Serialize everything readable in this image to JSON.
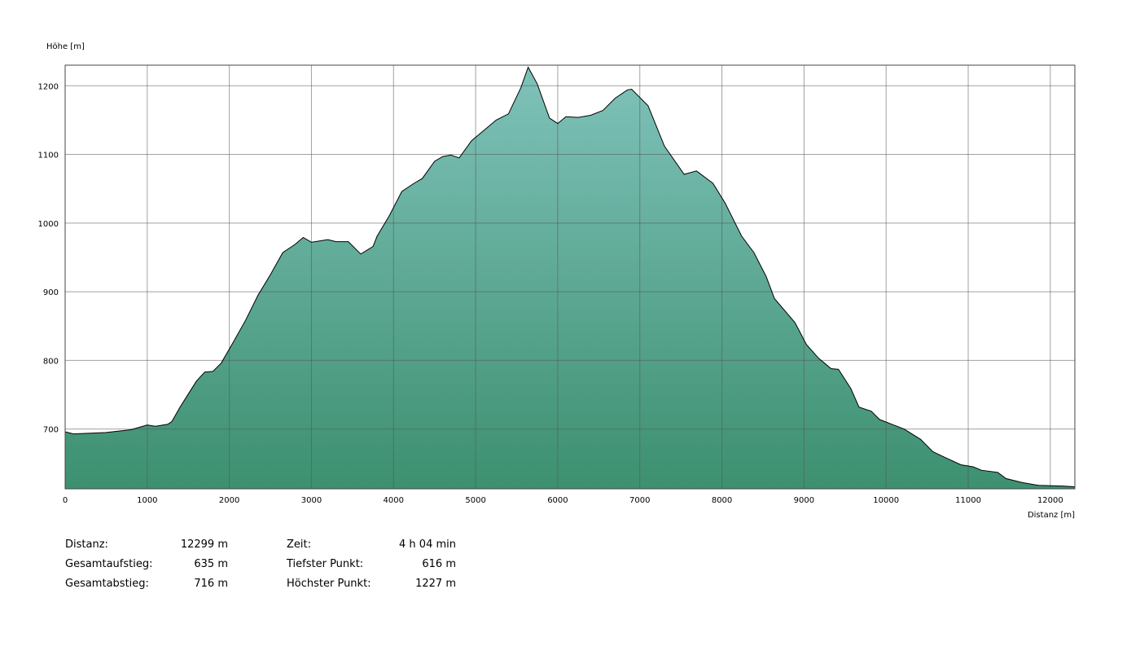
{
  "chart_data": {
    "type": "area",
    "y_label": "Höhe [m]",
    "x_label": "Distanz [m]",
    "x": [
      0,
      100,
      500,
      800,
      1000,
      1100,
      1250,
      1300,
      1400,
      1500,
      1600,
      1700,
      1800,
      1900,
      2050,
      2200,
      2350,
      2500,
      2650,
      2800,
      2900,
      3000,
      3100,
      3200,
      3300,
      3450,
      3600,
      3750,
      3800,
      3950,
      4100,
      4250,
      4350,
      4500,
      4600,
      4700,
      4800,
      4950,
      5100,
      5250,
      5400,
      5550,
      5640,
      5750,
      5900,
      6000,
      6100,
      6250,
      6400,
      6550,
      6700,
      6850,
      6900,
      7100,
      7300,
      7540,
      7690,
      7890,
      8040,
      8240,
      8390,
      8540,
      8640,
      8890,
      9030,
      9180,
      9330,
      9420,
      9570,
      9670,
      9820,
      9920,
      10070,
      10220,
      10420,
      10570,
      10710,
      10910,
      11060,
      11160,
      11360,
      11460,
      11660,
      11860,
      12150,
      12299
    ],
    "values": [
      696,
      693,
      695,
      699,
      706,
      704,
      707,
      711,
      732,
      751,
      770,
      783,
      784,
      796,
      827,
      859,
      895,
      925,
      957,
      969,
      979,
      972,
      974,
      976,
      973,
      973,
      955,
      966,
      981,
      1011,
      1046,
      1058,
      1065,
      1090,
      1097,
      1099,
      1095,
      1120,
      1135,
      1150,
      1159,
      1197,
      1227,
      1203,
      1153,
      1145,
      1155,
      1154,
      1157,
      1164,
      1182,
      1194,
      1195,
      1171,
      1112,
      1071,
      1076,
      1058,
      1029,
      981,
      957,
      922,
      890,
      855,
      823,
      803,
      788,
      787,
      759,
      732,
      726,
      714,
      707,
      700,
      685,
      667,
      659,
      648,
      645,
      640,
      637,
      628,
      622,
      618,
      617,
      616
    ],
    "xlim": [
      0,
      12299
    ],
    "ylim": [
      613,
      1230
    ],
    "xticks": [
      0,
      1000,
      2000,
      3000,
      4000,
      5000,
      6000,
      7000,
      8000,
      9000,
      10000,
      11000,
      12000
    ],
    "yticks": [
      700,
      800,
      900,
      1000,
      1100,
      1200
    ],
    "grid": true,
    "fill_top": "#7fc2ba",
    "fill_bottom": "#3d9070",
    "line_color": "#000000"
  },
  "stats": [
    [
      {
        "label": "Distanz:",
        "value": "12299 m"
      },
      {
        "label": "Zeit:",
        "value": "4 h 04 min"
      }
    ],
    [
      {
        "label": "Gesamtaufstieg:",
        "value": "635 m"
      },
      {
        "label": "Tiefster Punkt:",
        "value": "616 m"
      }
    ],
    [
      {
        "label": "Gesamtabstieg:",
        "value": "716 m"
      },
      {
        "label": "Höchster Punkt:",
        "value": "1227 m"
      }
    ]
  ]
}
